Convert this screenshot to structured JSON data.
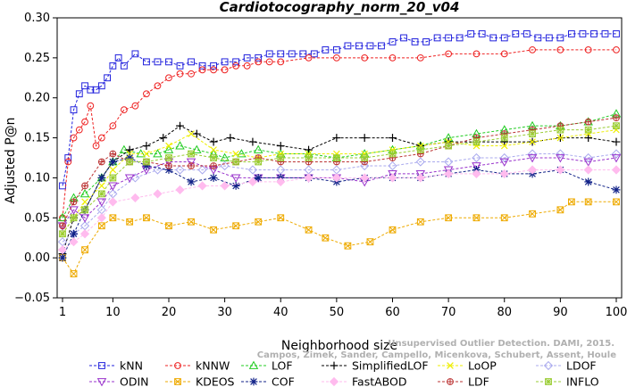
{
  "chart_data": {
    "type": "line",
    "title": "Cardiotocography_norm_20_v04",
    "xlabel": "Neighborhood size",
    "ylabel": "Adjusted P@n",
    "xlim": [
      1,
      100
    ],
    "ylim": [
      -0.05,
      0.3
    ],
    "xticks": [
      1,
      10,
      20,
      30,
      40,
      50,
      60,
      70,
      80,
      90,
      100
    ],
    "yticks": [
      -0.05,
      0.0,
      0.05,
      0.1,
      0.15,
      0.2,
      0.25,
      0.3
    ],
    "ytick_labels": [
      "−0.05",
      "0.00",
      "0.05",
      "0.10",
      "0.15",
      "0.20",
      "0.25",
      "0.30"
    ],
    "grid": false,
    "legend_position": "bottom",
    "watermark": [
      "Unsupervised Outlier Detection. DAMI, 2015.",
      "Campos, Zimek, Sander, Campello, Micenkova, Schubert, Assent, Houle"
    ],
    "series": [
      {
        "name": "kNN",
        "color": "#2222dd",
        "marker": "square",
        "x": [
          1,
          2,
          3,
          4,
          5,
          6,
          7,
          8,
          9,
          10,
          11,
          12,
          14,
          16,
          18,
          20,
          22,
          24,
          26,
          28,
          30,
          32,
          34,
          36,
          38,
          40,
          42,
          44,
          46,
          48,
          50,
          52,
          54,
          56,
          58,
          60,
          62,
          64,
          66,
          68,
          70,
          72,
          74,
          76,
          78,
          80,
          82,
          84,
          86,
          88,
          90,
          92,
          94,
          96,
          98,
          100
        ],
        "values": [
          0.09,
          0.125,
          0.185,
          0.205,
          0.215,
          0.21,
          0.21,
          0.215,
          0.225,
          0.24,
          0.25,
          0.24,
          0.255,
          0.245,
          0.245,
          0.245,
          0.24,
          0.245,
          0.24,
          0.24,
          0.245,
          0.245,
          0.25,
          0.25,
          0.255,
          0.255,
          0.255,
          0.255,
          0.255,
          0.26,
          0.26,
          0.265,
          0.265,
          0.265,
          0.265,
          0.27,
          0.275,
          0.27,
          0.27,
          0.275,
          0.275,
          0.275,
          0.28,
          0.28,
          0.275,
          0.275,
          0.28,
          0.28,
          0.275,
          0.275,
          0.275,
          0.28,
          0.28,
          0.28,
          0.28,
          0.28
        ]
      },
      {
        "name": "kNNW",
        "color": "#ee2222",
        "marker": "circle",
        "x": [
          1,
          2,
          3,
          4,
          5,
          6,
          7,
          8,
          10,
          12,
          14,
          16,
          18,
          20,
          22,
          24,
          26,
          28,
          30,
          32,
          34,
          36,
          38,
          40,
          45,
          50,
          55,
          60,
          65,
          70,
          75,
          80,
          85,
          90,
          95,
          100
        ],
        "values": [
          0.05,
          0.12,
          0.15,
          0.16,
          0.17,
          0.19,
          0.14,
          0.15,
          0.165,
          0.185,
          0.19,
          0.205,
          0.215,
          0.225,
          0.23,
          0.23,
          0.235,
          0.235,
          0.235,
          0.24,
          0.24,
          0.245,
          0.245,
          0.245,
          0.25,
          0.25,
          0.25,
          0.25,
          0.25,
          0.255,
          0.255,
          0.255,
          0.26,
          0.26,
          0.26,
          0.26
        ]
      },
      {
        "name": "LOF",
        "color": "#22cc22",
        "marker": "triangle-up",
        "x": [
          1,
          3,
          5,
          8,
          10,
          12,
          15,
          18,
          20,
          22,
          25,
          28,
          30,
          33,
          36,
          40,
          45,
          50,
          55,
          60,
          65,
          70,
          75,
          80,
          85,
          90,
          95,
          100
        ],
        "values": [
          0.05,
          0.075,
          0.08,
          0.1,
          0.12,
          0.135,
          0.13,
          0.13,
          0.135,
          0.14,
          0.135,
          0.13,
          0.125,
          0.13,
          0.135,
          0.13,
          0.13,
          0.125,
          0.13,
          0.135,
          0.14,
          0.15,
          0.155,
          0.16,
          0.165,
          0.165,
          0.17,
          0.18
        ]
      },
      {
        "name": "SimplifiedLOF",
        "color": "#000000",
        "marker": "plus",
        "x": [
          1,
          3,
          5,
          8,
          10,
          13,
          16,
          19,
          22,
          25,
          28,
          31,
          35,
          40,
          45,
          50,
          55,
          60,
          65,
          70,
          75,
          80,
          85,
          90,
          95,
          100
        ],
        "values": [
          0.005,
          0.05,
          0.06,
          0.1,
          0.12,
          0.135,
          0.14,
          0.15,
          0.165,
          0.155,
          0.145,
          0.15,
          0.145,
          0.14,
          0.135,
          0.15,
          0.15,
          0.15,
          0.14,
          0.145,
          0.145,
          0.145,
          0.145,
          0.15,
          0.15,
          0.145
        ]
      },
      {
        "name": "LoOP",
        "color": "#eeee00",
        "marker": "x",
        "x": [
          1,
          3,
          5,
          8,
          10,
          13,
          16,
          20,
          24,
          28,
          32,
          36,
          40,
          45,
          50,
          55,
          60,
          65,
          70,
          75,
          80,
          85,
          90,
          95,
          100
        ],
        "values": [
          0.03,
          0.05,
          0.07,
          0.09,
          0.11,
          0.13,
          0.13,
          0.14,
          0.155,
          0.135,
          0.13,
          0.125,
          0.13,
          0.13,
          0.13,
          0.13,
          0.135,
          0.14,
          0.145,
          0.14,
          0.14,
          0.145,
          0.15,
          0.155,
          0.16
        ]
      },
      {
        "name": "LDOF",
        "color": "#aaaaee",
        "marker": "diamond",
        "x": [
          1,
          3,
          5,
          8,
          10,
          14,
          18,
          22,
          26,
          30,
          35,
          40,
          45,
          50,
          55,
          60,
          65,
          70,
          75,
          80,
          85,
          90,
          95,
          100
        ],
        "values": [
          0.02,
          0.03,
          0.04,
          0.06,
          0.08,
          0.1,
          0.11,
          0.11,
          0.11,
          0.115,
          0.11,
          0.11,
          0.11,
          0.11,
          0.115,
          0.115,
          0.12,
          0.12,
          0.125,
          0.125,
          0.13,
          0.13,
          0.125,
          0.13
        ]
      },
      {
        "name": "ODIN",
        "color": "#9933cc",
        "marker": "triangle-down",
        "x": [
          1,
          3,
          5,
          8,
          10,
          13,
          16,
          20,
          24,
          28,
          32,
          36,
          40,
          45,
          50,
          55,
          60,
          65,
          70,
          75,
          80,
          85,
          90,
          95,
          100
        ],
        "values": [
          0.04,
          0.06,
          0.05,
          0.07,
          0.09,
          0.1,
          0.11,
          0.12,
          0.12,
          0.11,
          0.1,
          0.1,
          0.1,
          0.1,
          0.1,
          0.095,
          0.105,
          0.105,
          0.11,
          0.115,
          0.12,
          0.125,
          0.125,
          0.12,
          0.125
        ]
      },
      {
        "name": "KDEOS",
        "color": "#eeaa00",
        "marker": "square-x",
        "x": [
          1,
          3,
          5,
          8,
          10,
          13,
          16,
          20,
          24,
          28,
          32,
          36,
          40,
          45,
          48,
          52,
          56,
          60,
          65,
          70,
          75,
          80,
          85,
          90,
          92,
          95,
          100
        ],
        "values": [
          0.0,
          -0.02,
          0.01,
          0.04,
          0.05,
          0.045,
          0.05,
          0.04,
          0.045,
          0.035,
          0.04,
          0.045,
          0.05,
          0.035,
          0.025,
          0.015,
          0.02,
          0.035,
          0.045,
          0.05,
          0.05,
          0.05,
          0.055,
          0.06,
          0.07,
          0.07,
          0.07
        ]
      },
      {
        "name": "COF",
        "color": "#112288",
        "marker": "star",
        "x": [
          1,
          3,
          5,
          8,
          10,
          13,
          16,
          20,
          24,
          28,
          32,
          36,
          40,
          45,
          50,
          55,
          60,
          65,
          70,
          75,
          80,
          85,
          90,
          95,
          100
        ],
        "values": [
          0.0,
          0.03,
          0.06,
          0.1,
          0.12,
          0.125,
          0.115,
          0.11,
          0.095,
          0.1,
          0.09,
          0.1,
          0.1,
          0.1,
          0.095,
          0.1,
          0.1,
          0.1,
          0.105,
          0.11,
          0.105,
          0.105,
          0.11,
          0.095,
          0.085
        ]
      },
      {
        "name": "FastABOD",
        "color": "#ffbbee",
        "marker": "diamond-filled",
        "x": [
          1,
          3,
          5,
          8,
          10,
          14,
          18,
          22,
          26,
          30,
          35,
          40,
          45,
          50,
          55,
          60,
          65,
          70,
          75,
          80,
          85,
          90,
          95,
          100
        ],
        "values": [
          0.01,
          0.02,
          0.03,
          0.05,
          0.07,
          0.075,
          0.08,
          0.085,
          0.09,
          0.09,
          0.095,
          0.095,
          0.1,
          0.1,
          0.1,
          0.1,
          0.1,
          0.105,
          0.105,
          0.105,
          0.11,
          0.11,
          0.11,
          0.11
        ]
      },
      {
        "name": "LDF",
        "color": "#bb3333",
        "marker": "circle-plus",
        "x": [
          1,
          3,
          5,
          8,
          10,
          13,
          16,
          20,
          24,
          28,
          32,
          36,
          40,
          45,
          50,
          55,
          60,
          65,
          70,
          75,
          80,
          85,
          90,
          95,
          100
        ],
        "values": [
          0.04,
          0.07,
          0.09,
          0.12,
          0.13,
          0.12,
          0.12,
          0.115,
          0.115,
          0.115,
          0.12,
          0.125,
          0.12,
          0.12,
          0.12,
          0.12,
          0.125,
          0.13,
          0.14,
          0.15,
          0.155,
          0.16,
          0.165,
          0.17,
          0.175
        ]
      },
      {
        "name": "INFLO",
        "color": "#99cc33",
        "marker": "square-star",
        "x": [
          1,
          3,
          5,
          8,
          10,
          13,
          16,
          20,
          24,
          28,
          32,
          36,
          40,
          45,
          50,
          55,
          60,
          65,
          70,
          75,
          80,
          85,
          90,
          95,
          100
        ],
        "values": [
          0.03,
          0.05,
          0.06,
          0.08,
          0.1,
          0.12,
          0.12,
          0.125,
          0.13,
          0.125,
          0.12,
          0.12,
          0.125,
          0.125,
          0.125,
          0.125,
          0.13,
          0.135,
          0.14,
          0.145,
          0.15,
          0.155,
          0.16,
          0.16,
          0.165
        ]
      }
    ]
  }
}
